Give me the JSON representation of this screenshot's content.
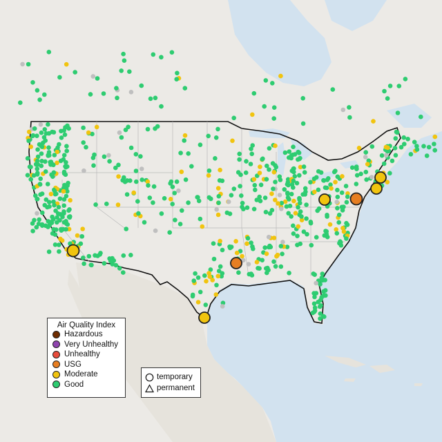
{
  "map": {
    "colors": {
      "ocean": "#d2e2ef",
      "land": "#eceae6",
      "good": "#2ecc71",
      "moderate": "#f1c40f",
      "usg": "#e67e22",
      "unhealthy": "#e74c3c",
      "very_unhealthy": "#8e44ad",
      "hazardous": "#6e2c00",
      "permanent_station": "#bfbfbf"
    }
  },
  "legend": {
    "title": "Air Quality Index",
    "items": [
      {
        "label": "Hazardous",
        "color": "#6e2c00"
      },
      {
        "label": "Very Unhealthy",
        "color": "#8e44ad"
      },
      {
        "label": "Unhealthy",
        "color": "#e74c3c"
      },
      {
        "label": "USG",
        "color": "#e67e22"
      },
      {
        "label": "Moderate",
        "color": "#f1c40f"
      },
      {
        "label": "Good",
        "color": "#2ecc71"
      }
    ]
  },
  "type_legend": {
    "temporary": "temporary",
    "permanent": "permanent"
  }
}
